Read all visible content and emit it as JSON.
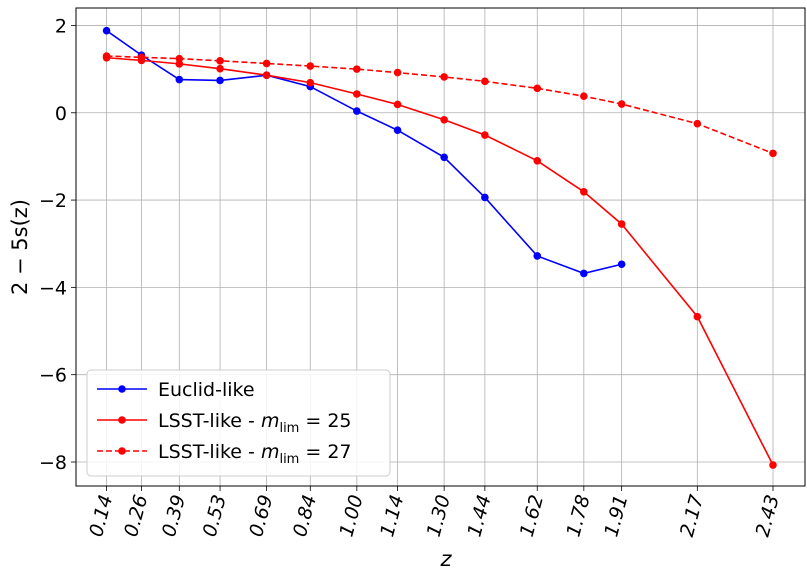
{
  "chart_data": {
    "type": "line",
    "x": [
      0.14,
      0.26,
      0.39,
      0.53,
      0.69,
      0.84,
      1.0,
      1.14,
      1.3,
      1.44,
      1.62,
      1.78,
      1.91,
      2.17,
      2.43
    ],
    "x_tick_labels": [
      "0.14",
      "0.26",
      "0.39",
      "0.53",
      "0.69",
      "0.84",
      "1.00",
      "1.14",
      "1.30",
      "1.44",
      "1.62",
      "1.78",
      "1.91",
      "2.17",
      "2.43"
    ],
    "xlim": [
      0.035,
      2.54
    ],
    "ylim": [
      -8.55,
      2.4
    ],
    "y_ticks": [
      2,
      0,
      -2,
      -4,
      -6,
      -8
    ],
    "y_tick_labels": [
      "2",
      "0",
      "−2",
      "−4",
      "−6",
      "−8"
    ],
    "xlabel": "z",
    "ylabel": "2 − 5s(z)",
    "grid": true,
    "legend_position": "lower-left",
    "series": [
      {
        "name": "Euclid-like",
        "color": "#0000ff",
        "dash": "solid",
        "x": [
          0.14,
          0.26,
          0.39,
          0.53,
          0.69,
          0.84,
          1.0,
          1.14,
          1.3,
          1.44,
          1.62,
          1.78,
          1.91
        ],
        "values": [
          1.88,
          1.32,
          0.76,
          0.74,
          0.86,
          0.6,
          0.04,
          -0.4,
          -1.02,
          -1.94,
          -3.28,
          -3.68,
          -3.47
        ]
      },
      {
        "name": "LSST-like - m_lim = 25",
        "color": "#ff0000",
        "dash": "solid",
        "x": [
          0.14,
          0.26,
          0.39,
          0.53,
          0.69,
          0.84,
          1.0,
          1.14,
          1.3,
          1.44,
          1.62,
          1.78,
          1.91,
          2.17,
          2.43
        ],
        "values": [
          1.26,
          1.2,
          1.12,
          1.01,
          0.86,
          0.69,
          0.43,
          0.19,
          -0.16,
          -0.51,
          -1.1,
          -1.81,
          -2.55,
          -4.67,
          -8.07
        ]
      },
      {
        "name": "LSST-like - m_lim = 27",
        "color": "#ff0000",
        "dash": "dashed",
        "x": [
          0.14,
          0.26,
          0.39,
          0.53,
          0.69,
          0.84,
          1.0,
          1.14,
          1.3,
          1.44,
          1.62,
          1.78,
          1.91,
          2.17,
          2.43
        ],
        "values": [
          1.3,
          1.27,
          1.24,
          1.19,
          1.13,
          1.07,
          1.0,
          0.92,
          0.82,
          0.72,
          0.56,
          0.38,
          0.2,
          -0.25,
          -0.93
        ]
      }
    ],
    "legend": [
      {
        "prefix": "Euclid-like",
        "math": "",
        "sub": "",
        "suffix": ""
      },
      {
        "prefix": "LSST-like - ",
        "math": "m",
        "sub": "lim",
        "suffix": " = 25"
      },
      {
        "prefix": "LSST-like - ",
        "math": "m",
        "sub": "lim",
        "suffix": " = 27"
      }
    ]
  }
}
